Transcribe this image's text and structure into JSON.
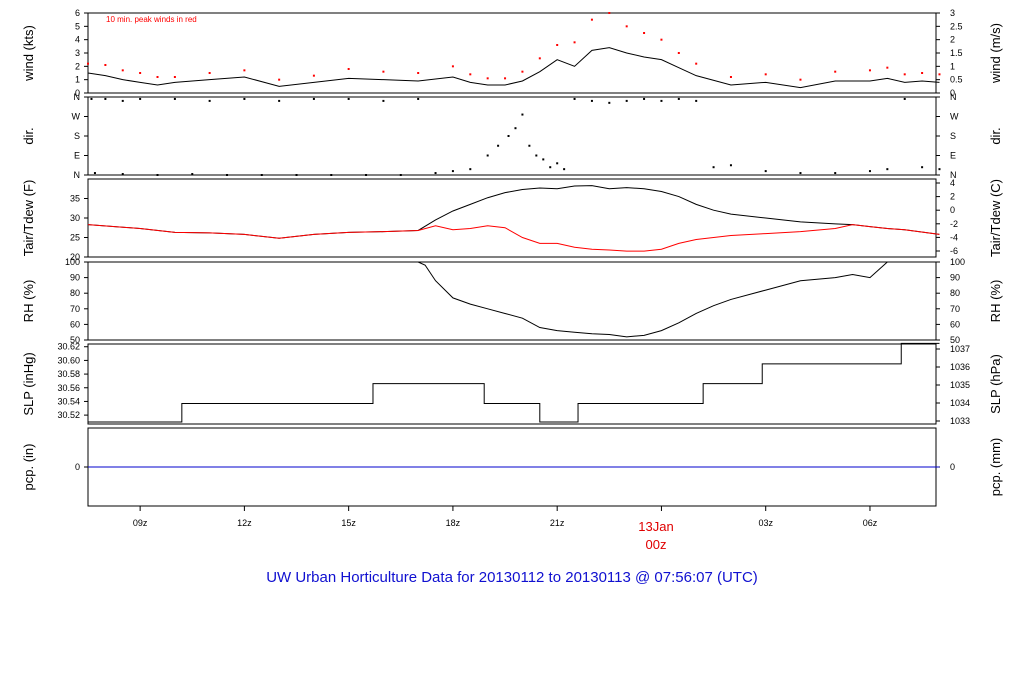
{
  "title": "UW Urban Horticulture Data for 20130112  to  20130113 @ 07:56:07  (UTC)",
  "annotation": "10 min. peak winds in red",
  "date_marker": {
    "label": "13Jan",
    "sub": "00z",
    "color": "#e00000"
  },
  "colors": {
    "black": "#000000",
    "red": "#ff0000",
    "blue": "#0000cc",
    "title": "#1010d0"
  },
  "chart_data": [
    {
      "id": "wind",
      "type": "line",
      "left_label": "wind (kts)",
      "right_label": "wind (m/s)",
      "ylim": [
        0,
        6
      ],
      "left_ticks": [
        "0",
        "1",
        "2",
        "3",
        "4",
        "5",
        "6"
      ],
      "right_ticks": [
        "0",
        "0.5",
        "1",
        "1.5",
        "2",
        "2.5",
        "3"
      ],
      "series": [
        {
          "color": "#000000",
          "style": "line",
          "x": [
            7.5,
            8,
            8.5,
            9,
            9.5,
            10,
            11,
            12,
            13,
            14,
            15,
            16,
            17,
            18,
            18.5,
            19,
            19.5,
            20,
            20.5,
            21,
            21.5,
            22,
            22.5,
            23,
            23.5,
            24,
            24.5,
            25,
            26,
            27,
            28,
            29,
            30,
            30.5,
            31,
            31.5,
            32
          ],
          "y": [
            1.5,
            1.3,
            1.0,
            0.8,
            0.6,
            0.8,
            1.0,
            1.2,
            0.5,
            0.8,
            1.1,
            1.0,
            0.9,
            1.2,
            0.8,
            0.6,
            0.6,
            0.9,
            1.6,
            2.5,
            2.0,
            3.2,
            3.4,
            3.0,
            2.7,
            2.5,
            1.9,
            1.3,
            0.6,
            0.8,
            0.4,
            0.9,
            0.9,
            1.1,
            0.8,
            0.9,
            0.8
          ]
        },
        {
          "name": "10 min. peak winds in red",
          "color": "#ff0000",
          "style": "dots",
          "x": [
            7.5,
            8,
            8.5,
            9,
            9.5,
            10,
            11,
            12,
            13,
            14,
            15,
            16,
            17,
            18,
            18.5,
            19,
            19.5,
            20,
            20.5,
            21,
            21.5,
            22,
            22.5,
            23,
            23.5,
            24,
            24.5,
            25,
            26,
            27,
            28,
            29,
            30,
            30.5,
            31,
            31.5,
            32
          ],
          "y": [
            2.2,
            2.1,
            1.7,
            1.5,
            1.2,
            1.2,
            1.5,
            1.7,
            1.0,
            1.3,
            1.8,
            1.6,
            1.5,
            2.0,
            1.4,
            1.1,
            1.1,
            1.6,
            2.6,
            3.6,
            3.8,
            5.5,
            6.0,
            5.0,
            4.5,
            4.0,
            3.0,
            2.2,
            1.2,
            1.4,
            1.0,
            1.6,
            1.7,
            1.9,
            1.4,
            1.5,
            1.4
          ]
        }
      ]
    },
    {
      "id": "dir",
      "type": "scatter",
      "left_label": "dir.",
      "right_label": "dir.",
      "ylim": [
        0,
        4
      ],
      "left_ticks": [
        "N",
        "E",
        "S",
        "W",
        "N"
      ],
      "right_ticks": [
        "N",
        "E",
        "S",
        "W",
        "N"
      ],
      "series": [
        {
          "color": "#000000",
          "style": "dots",
          "x": [
            7.6,
            8,
            8.5,
            9,
            10,
            11,
            12,
            13,
            14,
            15,
            16,
            17,
            7.7,
            8.5,
            9.5,
            10.5,
            11.5,
            12.5,
            13.5,
            14.5,
            15.5,
            16.5,
            17.5,
            18,
            18.5,
            19,
            19.3,
            19.6,
            19.8,
            20,
            20.2,
            20.4,
            20.6,
            20.8,
            21,
            21.2,
            21.5,
            22,
            22.5,
            23,
            23.5,
            24,
            24.5,
            25,
            25.5,
            26,
            27,
            28,
            29,
            30,
            30.5,
            31,
            31.5,
            32
          ],
          "y": [
            3.9,
            3.9,
            3.8,
            3.9,
            3.9,
            3.8,
            3.9,
            3.8,
            3.9,
            3.9,
            3.8,
            3.9,
            0.1,
            0.05,
            0.0,
            0.05,
            0.0,
            0.0,
            0.0,
            0.0,
            0.0,
            0.0,
            0.1,
            0.2,
            0.3,
            1.0,
            1.5,
            2.0,
            2.4,
            3.1,
            1.5,
            1.0,
            0.8,
            0.4,
            0.6,
            0.3,
            3.9,
            3.8,
            3.7,
            3.8,
            3.9,
            3.8,
            3.9,
            3.8,
            0.4,
            0.5,
            0.2,
            0.1,
            0.1,
            0.2,
            0.3,
            3.9,
            0.4,
            0.3
          ]
        }
      ]
    },
    {
      "id": "temp",
      "type": "line",
      "left_label": "Tair/Tdew (F)",
      "right_label": "Tair/Tdew (C)",
      "ylim": [
        20,
        40
      ],
      "left_ticks": [
        "20",
        "25",
        "30",
        "35"
      ],
      "right_ticks": [
        "-6",
        "-4",
        "-2",
        "0",
        "2",
        "4"
      ],
      "series": [
        {
          "name": "Tair",
          "color": "#000000",
          "x": [
            7.5,
            9,
            10,
            11,
            12,
            13,
            14,
            15,
            16,
            17,
            17.5,
            18,
            18.5,
            19,
            19.5,
            20,
            20.5,
            21,
            21.5,
            22,
            22.5,
            23,
            23.5,
            24,
            24.5,
            25,
            25.5,
            26,
            27,
            28,
            29,
            29.5,
            30,
            30.5,
            31,
            32
          ],
          "y": [
            28.3,
            27.3,
            26.3,
            26.2,
            25.8,
            24.8,
            25.8,
            26.3,
            26.5,
            26.8,
            29.5,
            31.8,
            33.5,
            35.2,
            36.5,
            37.3,
            37.7,
            37.5,
            38.2,
            38.3,
            37.5,
            37.8,
            37.5,
            36.8,
            35.5,
            33.5,
            32.0,
            31.0,
            30.0,
            29.0,
            28.5,
            28.3,
            27.8,
            27.3,
            27.0,
            25.8
          ]
        },
        {
          "name": "Tdew",
          "color": "#ff0000",
          "x": [
            7.5,
            9,
            10,
            11,
            12,
            13,
            14,
            15,
            16,
            17,
            17.5,
            18,
            18.5,
            19,
            19.5,
            20,
            20.5,
            21,
            21.5,
            22,
            22.5,
            23,
            23.5,
            24,
            24.5,
            25,
            25.5,
            26,
            27,
            28,
            29,
            29.5,
            30,
            30.5,
            31,
            32
          ],
          "y": [
            28.3,
            27.3,
            26.3,
            26.2,
            25.8,
            24.8,
            25.8,
            26.3,
            26.5,
            26.8,
            28.0,
            27.0,
            27.3,
            28.0,
            27.5,
            25.0,
            23.5,
            23.5,
            22.5,
            22.0,
            21.8,
            21.5,
            21.5,
            22.0,
            23.5,
            24.5,
            25.0,
            25.5,
            26.0,
            26.5,
            27.3,
            28.3,
            27.8,
            27.3,
            27.0,
            25.8
          ]
        }
      ]
    },
    {
      "id": "rh",
      "type": "line",
      "left_label": "RH (%)",
      "right_label": "RH (%)",
      "ylim": [
        50,
        100
      ],
      "left_ticks": [
        "50",
        "60",
        "70",
        "80",
        "90",
        "100"
      ],
      "right_ticks": [
        "50",
        "60",
        "70",
        "80",
        "90",
        "100"
      ],
      "series": [
        {
          "color": "#000000",
          "x": [
            7.5,
            17,
            17.2,
            17.5,
            18,
            18.5,
            19,
            19.5,
            20,
            20.5,
            21,
            21.5,
            22,
            22.5,
            23,
            23.5,
            24,
            24.5,
            25,
            25.5,
            26,
            27,
            28,
            29,
            29.5,
            30,
            30.5,
            31,
            32
          ],
          "y": [
            100,
            100,
            98,
            88,
            77,
            73,
            70,
            67,
            64,
            58,
            56,
            55,
            54,
            53.5,
            52,
            53,
            56,
            61,
            67,
            72,
            76,
            82,
            88,
            90,
            92,
            90,
            100,
            100,
            100
          ]
        }
      ]
    },
    {
      "id": "slp",
      "type": "line",
      "left_label": "SLP (inHg)",
      "right_label": "SLP (hPa)",
      "ylim": [
        30.507,
        30.624
      ],
      "left_ticks": [
        "30.52",
        "30.54",
        "30.56",
        "30.58",
        "30.60",
        "30.62"
      ],
      "right_ticks": [
        "1033",
        "1034",
        "1035",
        "1036",
        "1037"
      ],
      "series": [
        {
          "color": "#000000",
          "style": "step",
          "x": [
            7.5,
            10.2,
            15.7,
            18.9,
            20.5,
            21.6,
            25.2,
            26.9,
            30.9,
            32
          ],
          "y": [
            30.51,
            30.537,
            30.566,
            30.537,
            30.51,
            30.537,
            30.566,
            30.595,
            30.625,
            30.625
          ]
        }
      ]
    },
    {
      "id": "pcp",
      "type": "line",
      "left_label": "pcp. (in)",
      "right_label": "pcp. (mm)",
      "ylim": [
        -1,
        1
      ],
      "left_ticks": [
        "0"
      ],
      "right_ticks": [
        "0"
      ],
      "series": [
        {
          "color": "#0000cc",
          "x": [
            7.5,
            32
          ],
          "y": [
            0,
            0
          ]
        }
      ]
    }
  ],
  "x_axis": {
    "ticks": [
      {
        "x": 9,
        "label": "09z"
      },
      {
        "x": 12,
        "label": "12z"
      },
      {
        "x": 15,
        "label": "15z"
      },
      {
        "x": 18,
        "label": "18z"
      },
      {
        "x": 21,
        "label": "21z"
      },
      {
        "x": 24,
        "label": "13Jan 00z"
      },
      {
        "x": 27,
        "label": "03z"
      },
      {
        "x": 30,
        "label": "06z"
      }
    ],
    "range": [
      7.5,
      31.9
    ]
  }
}
